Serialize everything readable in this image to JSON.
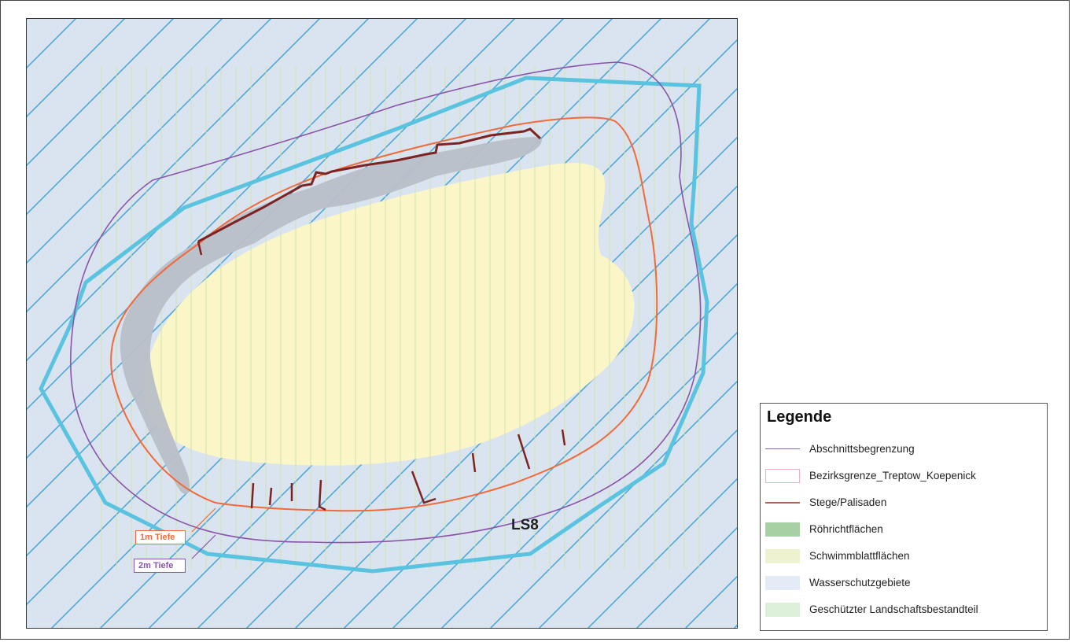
{
  "map": {
    "section_label": "LS8",
    "depth_labels": {
      "one_m": "1m Tiefe",
      "two_m": "2m Tiefe"
    },
    "colors": {
      "water_protection": "#dae4f0",
      "hatch_blue": "#4fa6d8",
      "floating_leaf": "#fbf6c8",
      "green_stripes": "#cfe3a8",
      "reed": "#b9bfc8",
      "depth_1m": "#f26a3b",
      "depth_2m": "#8a55a8",
      "district_boundary": "#5ac3e0",
      "jetties": "#7d2323"
    }
  },
  "legend": {
    "title": "Legende",
    "items": [
      {
        "label": "Abschnittsbegrenzung",
        "symbol": "line",
        "color": "#7a6aa0"
      },
      {
        "label": "Bezirksgrenze_Treptow_Koepenick",
        "symbol": "box-outline",
        "color": "#f0b0c4"
      },
      {
        "label": "Stege/Palisaden",
        "symbol": "line",
        "color": "#b7605a"
      },
      {
        "label": "Röhrichtflächen",
        "symbol": "fill",
        "color": "#a7d0a4"
      },
      {
        "label": "Schwimmblattflächen",
        "symbol": "fill",
        "color": "#eef2d0"
      },
      {
        "label": "Wasserschutzgebiete",
        "symbol": "fill",
        "color": "#e3ebf6"
      },
      {
        "label": "Geschützter Landschaftsbestandteil",
        "symbol": "fill",
        "color": "#dcefd8"
      }
    ]
  }
}
